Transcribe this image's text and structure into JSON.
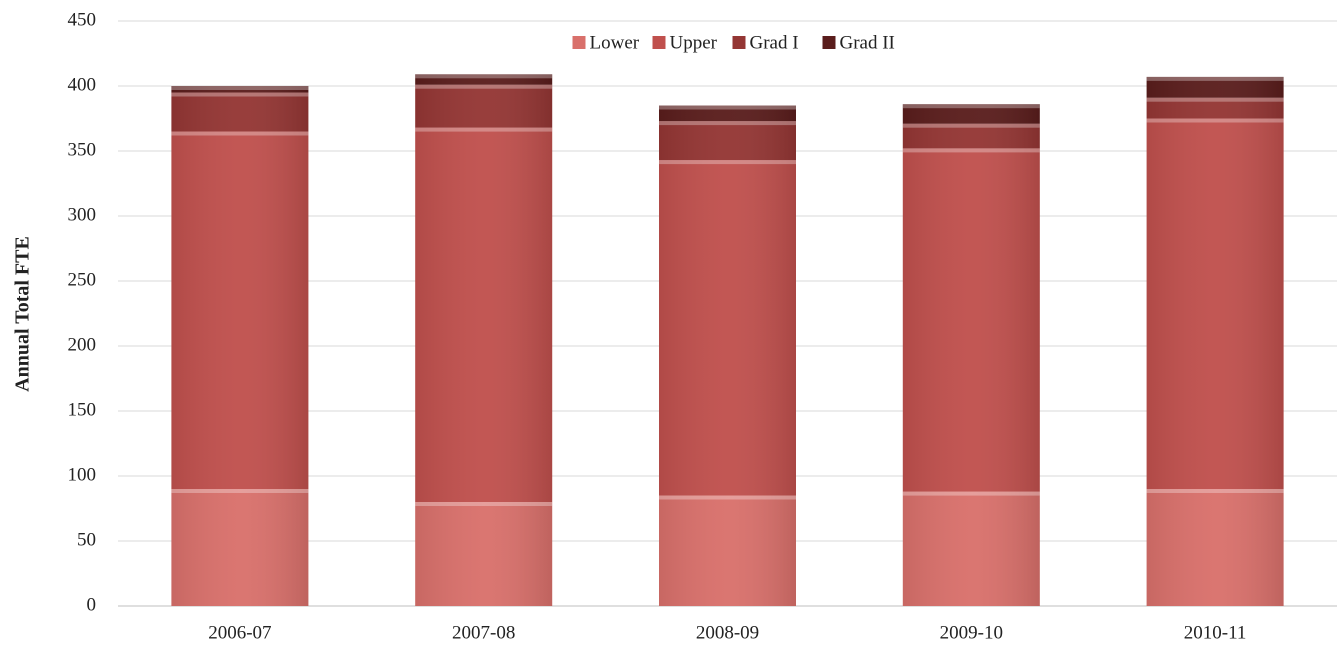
{
  "chart_data": {
    "type": "stacked_bar",
    "y_label": "Annual Total FTE",
    "categories": [
      "2006-07",
      "2007-08",
      "2008-09",
      "2009-10",
      "2010-11"
    ],
    "series": [
      {
        "name": "Lower",
        "color": "#d9706b",
        "values": [
          90,
          80,
          85,
          88,
          90
        ]
      },
      {
        "name": "Upper",
        "color": "#c0504d",
        "values": [
          275,
          288,
          258,
          264,
          285
        ]
      },
      {
        "name": "Grad I",
        "color": "#943634",
        "values": [
          30,
          33,
          30,
          19,
          16
        ]
      },
      {
        "name": "Grad II",
        "color": "#5a1d1c",
        "values": [
          5,
          8,
          12,
          15,
          16
        ]
      }
    ],
    "ylim": [
      0,
      450
    ],
    "yticks": [
      0,
      50,
      100,
      150,
      200,
      250,
      300,
      350,
      400,
      450
    ],
    "grid": true,
    "legend": "top"
  }
}
